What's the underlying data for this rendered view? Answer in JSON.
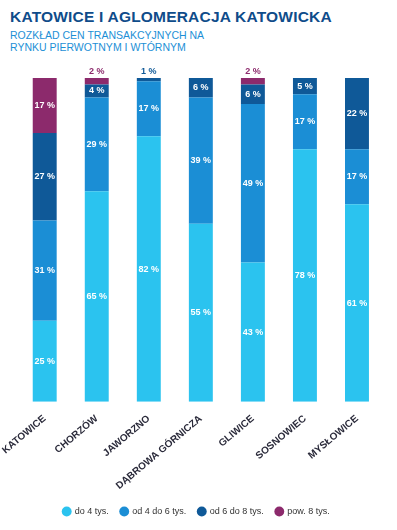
{
  "chart_data": {
    "type": "bar",
    "title": "KATOWICE I AGLOMERACJA KATOWICKA",
    "subtitle": "ROZKŁAD CEN TRANSAKCYJNYCH NA RYNKU PIERWOTNYM I WTÓRNYM",
    "categories": [
      "KATOWICE",
      "CHORZÓW",
      "JAWORZNO",
      "DĄBROWA GÓRNICZA",
      "GLIWICE",
      "SOSNOWIEC",
      "MYSŁOWICE"
    ],
    "series": [
      {
        "name": "do 4 tys.",
        "color": "#2bc3ef",
        "values": [
          25,
          65,
          82,
          55,
          43,
          78,
          61
        ],
        "value_labels": [
          "25 %",
          "65 %",
          "82 %",
          "55 %",
          "43 %",
          "78 %",
          "61 %"
        ]
      },
      {
        "name": "od 4 do 6 tys.",
        "color": "#1b8ed5",
        "values": [
          31,
          29,
          17,
          39,
          49,
          17,
          17
        ],
        "value_labels": [
          "31 %",
          "29 %",
          "17 %",
          "39 %",
          "49 %",
          "17 %",
          "17 %"
        ]
      },
      {
        "name": "od 6 do 8 tys.",
        "color": "#0f5998",
        "values": [
          27,
          4,
          1,
          6,
          6,
          5,
          22
        ],
        "value_labels": [
          "27 %",
          "4 %",
          "1 %",
          "6 %",
          "6 %",
          "5 %",
          "22 %"
        ]
      },
      {
        "name": "pow. 8 tys.",
        "color": "#8c2a6c",
        "values": [
          17,
          2,
          null,
          null,
          2,
          null,
          null
        ],
        "value_labels": [
          "17 %",
          "2 %",
          null,
          null,
          "2 %",
          null,
          null
        ]
      }
    ],
    "ylim": [
      0,
      100
    ],
    "stacked": true,
    "grid": false,
    "legend": "bottom",
    "data_labels": true,
    "tick_labels": "x"
  }
}
